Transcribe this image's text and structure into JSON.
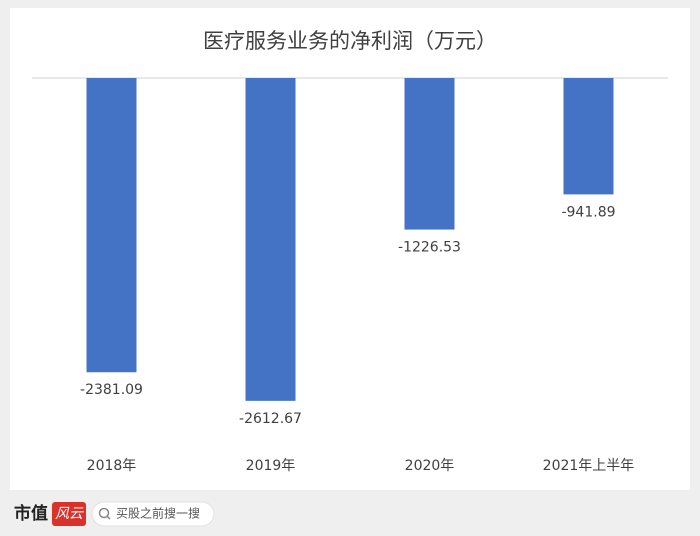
{
  "chart_data": {
    "type": "bar",
    "title": "医疗服务业务的净利润（万元）",
    "categories": [
      "2018年",
      "2019年",
      "2020年",
      "2021年上半年"
    ],
    "values": [
      -2381.09,
      -2612.67,
      -1226.53,
      -941.89
    ],
    "color": "#4472c4",
    "ylim": [
      -2800,
      0
    ]
  },
  "footer": {
    "brand": "市值",
    "brand_mark": "风云",
    "search": "买股之前搜一搜"
  }
}
